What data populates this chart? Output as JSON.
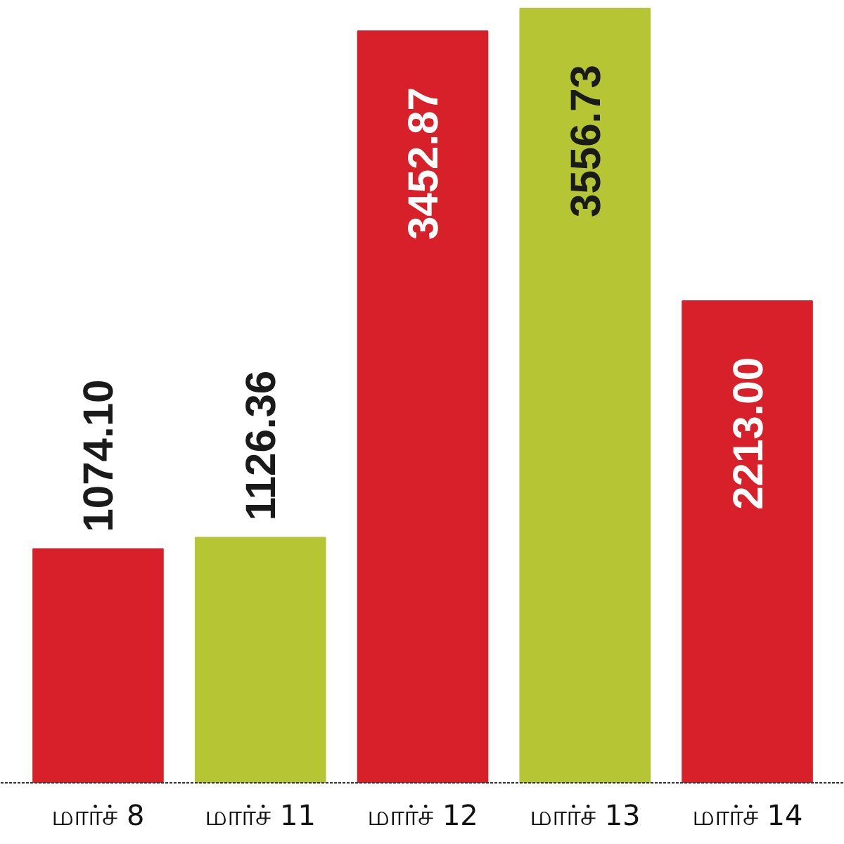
{
  "chart_data": {
    "type": "bar",
    "categories": [
      "மார்ச் 8",
      "மார்ச் 11",
      "மார்ச் 12",
      "மார்ச் 13",
      "மார்ச் 14"
    ],
    "values": [
      1074.1,
      1126.36,
      3452.87,
      3556.73,
      2213.0
    ],
    "colors": [
      "#d7202a",
      "#b5c534",
      "#d7202a",
      "#b5c534",
      "#d7202a"
    ],
    "value_labels": [
      "1074.10",
      "1126.36",
      "3452.87",
      "3556.73",
      "2213.00"
    ],
    "tick_labels": "x"
  }
}
